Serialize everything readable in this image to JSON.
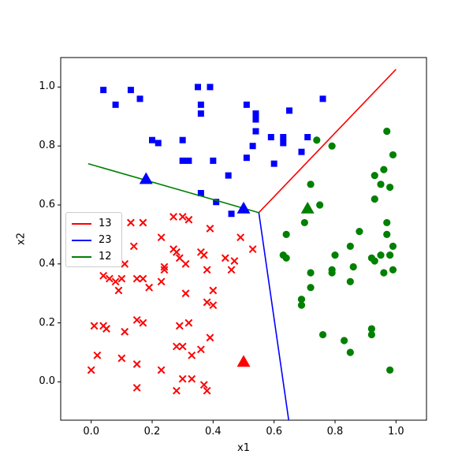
{
  "figure": {
    "xlabel": "x1",
    "ylabel": "x2",
    "x_ticks": [
      "0.0",
      "0.2",
      "0.4",
      "0.6",
      "0.8",
      "1.0"
    ],
    "y_ticks": [
      "0.0",
      "0.2",
      "0.4",
      "0.6",
      "0.8",
      "1.0"
    ],
    "frame_color": "#000000",
    "background": "#ffffff"
  },
  "legend": {
    "position": "center-left",
    "items": [
      {
        "label": "13",
        "color": "#ff0000"
      },
      {
        "label": "23",
        "color": "#0000ff"
      },
      {
        "label": "12",
        "color": "#008000"
      }
    ]
  },
  "chart_data": {
    "type": "scatter",
    "title": "",
    "xlabel": "x1",
    "ylabel": "x2",
    "xlim": [
      -0.1,
      1.1
    ],
    "ylim": [
      -0.13,
      1.1
    ],
    "x_tick_values": [
      0.0,
      0.2,
      0.4,
      0.6,
      0.8,
      1.0
    ],
    "y_tick_values": [
      0.0,
      0.2,
      0.4,
      0.6,
      0.8,
      1.0
    ],
    "grid": false,
    "legend_position": "center-left",
    "series": [
      {
        "name": "class-blue-squares",
        "marker": "square",
        "color": "#0000ff",
        "points": [
          [
            0.04,
            0.99
          ],
          [
            0.13,
            0.99
          ],
          [
            0.16,
            0.96
          ],
          [
            0.08,
            0.94
          ],
          [
            0.35,
            1.0
          ],
          [
            0.39,
            1.0
          ],
          [
            0.36,
            0.94
          ],
          [
            0.36,
            0.91
          ],
          [
            0.51,
            0.94
          ],
          [
            0.54,
            0.91
          ],
          [
            0.54,
            0.89
          ],
          [
            0.65,
            0.92
          ],
          [
            0.76,
            0.96
          ],
          [
            0.54,
            0.85
          ],
          [
            0.59,
            0.83
          ],
          [
            0.63,
            0.83
          ],
          [
            0.63,
            0.81
          ],
          [
            0.71,
            0.83
          ],
          [
            0.69,
            0.78
          ],
          [
            0.53,
            0.8
          ],
          [
            0.2,
            0.82
          ],
          [
            0.22,
            0.81
          ],
          [
            0.3,
            0.82
          ],
          [
            0.3,
            0.75
          ],
          [
            0.32,
            0.75
          ],
          [
            0.4,
            0.75
          ],
          [
            0.51,
            0.76
          ],
          [
            0.45,
            0.7
          ],
          [
            0.6,
            0.74
          ],
          [
            0.36,
            0.64
          ],
          [
            0.41,
            0.61
          ],
          [
            0.46,
            0.57
          ]
        ]
      },
      {
        "name": "class-red-crosses",
        "marker": "x",
        "color": "#ff0000",
        "points": [
          [
            0.13,
            0.54
          ],
          [
            0.17,
            0.54
          ],
          [
            0.27,
            0.56
          ],
          [
            0.3,
            0.56
          ],
          [
            0.32,
            0.55
          ],
          [
            0.39,
            0.52
          ],
          [
            0.49,
            0.49
          ],
          [
            0.53,
            0.45
          ],
          [
            0.23,
            0.49
          ],
          [
            0.14,
            0.46
          ],
          [
            0.27,
            0.45
          ],
          [
            0.28,
            0.44
          ],
          [
            0.29,
            0.42
          ],
          [
            0.36,
            0.44
          ],
          [
            0.37,
            0.43
          ],
          [
            0.44,
            0.42
          ],
          [
            0.47,
            0.41
          ],
          [
            0.46,
            0.38
          ],
          [
            0.38,
            0.38
          ],
          [
            0.11,
            0.4
          ],
          [
            0.24,
            0.39
          ],
          [
            0.24,
            0.38
          ],
          [
            0.31,
            0.4
          ],
          [
            0.04,
            0.36
          ],
          [
            0.06,
            0.35
          ],
          [
            0.08,
            0.34
          ],
          [
            0.1,
            0.35
          ],
          [
            0.15,
            0.35
          ],
          [
            0.17,
            0.35
          ],
          [
            0.19,
            0.32
          ],
          [
            0.23,
            0.34
          ],
          [
            0.09,
            0.31
          ],
          [
            0.31,
            0.3
          ],
          [
            0.4,
            0.31
          ],
          [
            0.38,
            0.27
          ],
          [
            0.4,
            0.26
          ],
          [
            0.15,
            0.21
          ],
          [
            0.17,
            0.2
          ],
          [
            0.01,
            0.19
          ],
          [
            0.04,
            0.19
          ],
          [
            0.05,
            0.18
          ],
          [
            0.11,
            0.17
          ],
          [
            0.29,
            0.19
          ],
          [
            0.32,
            0.2
          ],
          [
            0.39,
            0.15
          ],
          [
            0.28,
            0.12
          ],
          [
            0.3,
            0.12
          ],
          [
            0.33,
            0.09
          ],
          [
            0.36,
            0.11
          ],
          [
            0.02,
            0.09
          ],
          [
            0.1,
            0.08
          ],
          [
            0.15,
            0.06
          ],
          [
            0.0,
            0.04
          ],
          [
            0.23,
            0.04
          ],
          [
            0.15,
            -0.02
          ],
          [
            0.3,
            0.01
          ],
          [
            0.33,
            0.01
          ],
          [
            0.28,
            -0.03
          ],
          [
            0.37,
            -0.01
          ],
          [
            0.38,
            -0.03
          ]
        ]
      },
      {
        "name": "class-green-circles",
        "marker": "circle",
        "color": "#008000",
        "points": [
          [
            0.74,
            0.82
          ],
          [
            0.79,
            0.8
          ],
          [
            0.97,
            0.85
          ],
          [
            0.99,
            0.77
          ],
          [
            0.96,
            0.72
          ],
          [
            0.93,
            0.7
          ],
          [
            0.95,
            0.67
          ],
          [
            0.98,
            0.66
          ],
          [
            0.93,
            0.62
          ],
          [
            0.72,
            0.67
          ],
          [
            0.75,
            0.6
          ],
          [
            0.7,
            0.54
          ],
          [
            0.64,
            0.5
          ],
          [
            0.97,
            0.54
          ],
          [
            0.97,
            0.5
          ],
          [
            0.88,
            0.51
          ],
          [
            0.85,
            0.46
          ],
          [
            0.99,
            0.46
          ],
          [
            0.63,
            0.43
          ],
          [
            0.64,
            0.42
          ],
          [
            0.8,
            0.43
          ],
          [
            0.92,
            0.42
          ],
          [
            0.95,
            0.43
          ],
          [
            0.98,
            0.43
          ],
          [
            0.93,
            0.41
          ],
          [
            0.86,
            0.39
          ],
          [
            0.99,
            0.38
          ],
          [
            0.96,
            0.37
          ],
          [
            0.79,
            0.38
          ],
          [
            0.79,
            0.37
          ],
          [
            0.72,
            0.37
          ],
          [
            0.85,
            0.34
          ],
          [
            0.72,
            0.32
          ],
          [
            0.69,
            0.28
          ],
          [
            0.69,
            0.26
          ],
          [
            0.76,
            0.16
          ],
          [
            0.83,
            0.14
          ],
          [
            0.92,
            0.18
          ],
          [
            0.92,
            0.16
          ],
          [
            0.85,
            0.1
          ],
          [
            0.98,
            0.04
          ]
        ]
      }
    ],
    "centroids": [
      {
        "name": "centroid-blue-1",
        "marker": "triangle",
        "color": "#0000ff",
        "xy": [
          0.18,
          0.69
        ]
      },
      {
        "name": "centroid-blue-2",
        "marker": "triangle",
        "color": "#0000ff",
        "xy": [
          0.5,
          0.59
        ]
      },
      {
        "name": "centroid-green",
        "marker": "triangle",
        "color": "#008000",
        "xy": [
          0.71,
          0.59
        ]
      },
      {
        "name": "centroid-red",
        "marker": "triangle",
        "color": "#ff0000",
        "xy": [
          0.5,
          0.07
        ]
      }
    ],
    "boundary_lines": [
      {
        "name": "13",
        "color": "#ff0000",
        "from": [
          0.55,
          0.574
        ],
        "to": [
          1.0,
          1.06
        ]
      },
      {
        "name": "23",
        "color": "#0000ff",
        "from": [
          0.55,
          0.574
        ],
        "to": [
          0.648,
          -0.13
        ]
      },
      {
        "name": "12",
        "color": "#008000",
        "from": [
          -0.01,
          0.74
        ],
        "to": [
          0.55,
          0.574
        ]
      }
    ]
  }
}
